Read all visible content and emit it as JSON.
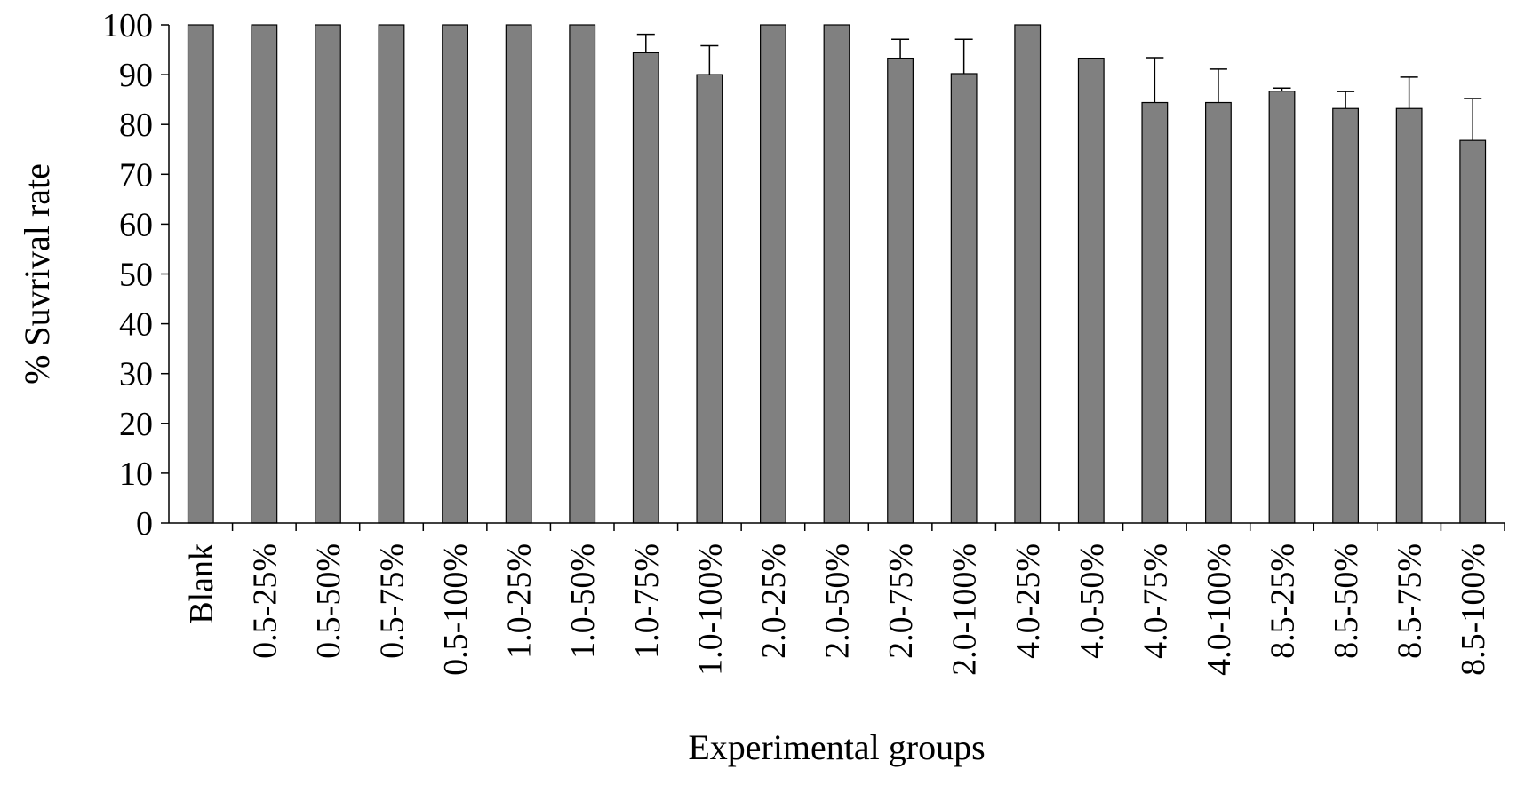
{
  "chart_data": {
    "type": "bar",
    "xlabel": "Experimental groups",
    "ylabel": "% Suvrival rate",
    "ylim": [
      0,
      100
    ],
    "yticks": [
      0,
      10,
      20,
      30,
      40,
      50,
      60,
      70,
      80,
      90,
      100
    ],
    "categories": [
      "Blank",
      "0.5-25%",
      "0.5-50%",
      "0.5-75%",
      "0.5-100%",
      "1.0-25%",
      "1.0-50%",
      "1.0-75%",
      "1.0-100%",
      "2.0-25%",
      "2.0-50%",
      "2.0-75%",
      "2.0-100%",
      "4.0-25%",
      "4.0-50%",
      "4.0-75%",
      "4.0-100%",
      "8.5-25%",
      "8.5-50%",
      "8.5-75%",
      "8.5-100%"
    ],
    "values": [
      100,
      100,
      100,
      100,
      100,
      100,
      100,
      94.4,
      90,
      100,
      100,
      93.3,
      90.2,
      100,
      93.3,
      84.4,
      84.4,
      86.7,
      83.2,
      83.2,
      76.8
    ],
    "errors": [
      0,
      0,
      0,
      0,
      0,
      0,
      0,
      3.7,
      5.8,
      0,
      0,
      3.8,
      6.9,
      0,
      0,
      9,
      6.7,
      0.6,
      3.4,
      6.3,
      8.4
    ],
    "bar_color": "#808080",
    "grid": false,
    "legend": "none"
  }
}
